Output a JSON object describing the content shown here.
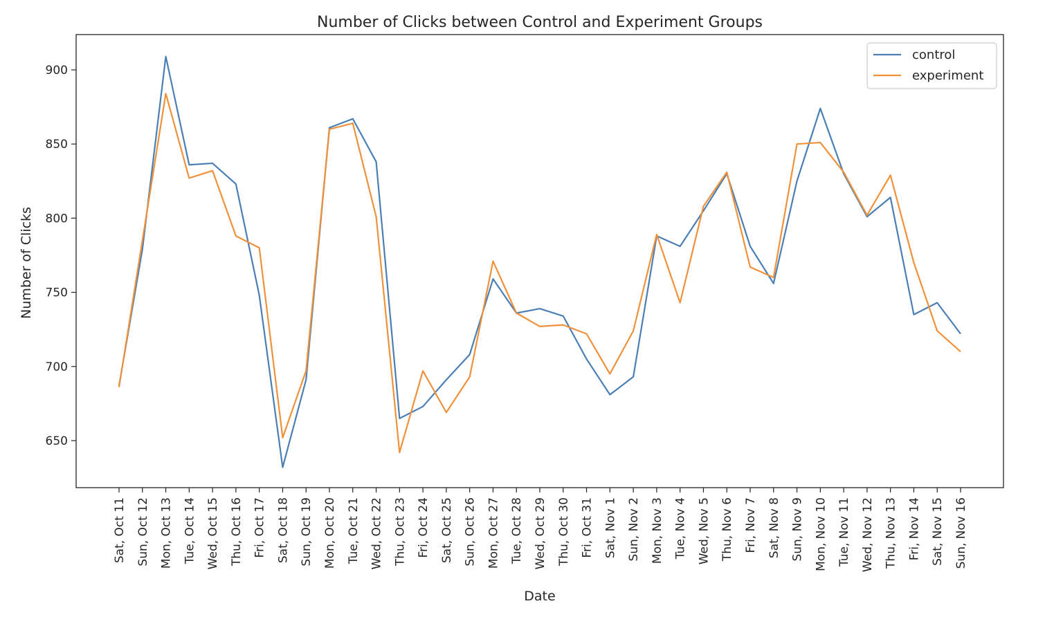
{
  "chart_data": {
    "type": "line",
    "title": "Number of Clicks between Control and Experiment Groups",
    "xlabel": "Date",
    "ylabel": "Number of Clicks",
    "categories": [
      "Sat, Oct 11",
      "Sun, Oct 12",
      "Mon, Oct 13",
      "Tue, Oct 14",
      "Wed, Oct 15",
      "Thu, Oct 16",
      "Fri, Oct 17",
      "Sat, Oct 18",
      "Sun, Oct 19",
      "Mon, Oct 20",
      "Tue, Oct 21",
      "Wed, Oct 22",
      "Thu, Oct 23",
      "Fri, Oct 24",
      "Sat, Oct 25",
      "Sun, Oct 26",
      "Mon, Oct 27",
      "Tue, Oct 28",
      "Wed, Oct 29",
      "Thu, Oct 30",
      "Fri, Oct 31",
      "Sat, Nov 1",
      "Sun, Nov 2",
      "Mon, Nov 3",
      "Tue, Nov 4",
      "Wed, Nov 5",
      "Thu, Nov 6",
      "Fri, Nov 7",
      "Sat, Nov 8",
      "Sun, Nov 9",
      "Mon, Nov 10",
      "Tue, Nov 11",
      "Wed, Nov 12",
      "Thu, Nov 13",
      "Fri, Nov 14",
      "Sat, Nov 15",
      "Sun, Nov 16"
    ],
    "series": [
      {
        "name": "control",
        "color": "#4a7fb5",
        "values": [
          687,
          779,
          909,
          836,
          837,
          823,
          748,
          632,
          691,
          861,
          867,
          838,
          665,
          673,
          691,
          708,
          759,
          736,
          739,
          734,
          705,
          681,
          693,
          788,
          781,
          805,
          830,
          781,
          756,
          825,
          874,
          830,
          801,
          814,
          735,
          743,
          722
        ]
      },
      {
        "name": "experiment",
        "color": "#f0913a",
        "values": [
          686,
          785,
          884,
          827,
          832,
          788,
          780,
          652,
          697,
          860,
          864,
          801,
          642,
          697,
          669,
          693,
          771,
          736,
          727,
          728,
          722,
          695,
          724,
          789,
          743,
          808,
          831,
          767,
          760,
          850,
          851,
          831,
          802,
          829,
          770,
          724,
          710
        ]
      }
    ],
    "ylim": [
      620,
      920
    ],
    "yticks": [
      650,
      700,
      750,
      800,
      850,
      900
    ],
    "grid": false,
    "legend_position": "top-right"
  }
}
